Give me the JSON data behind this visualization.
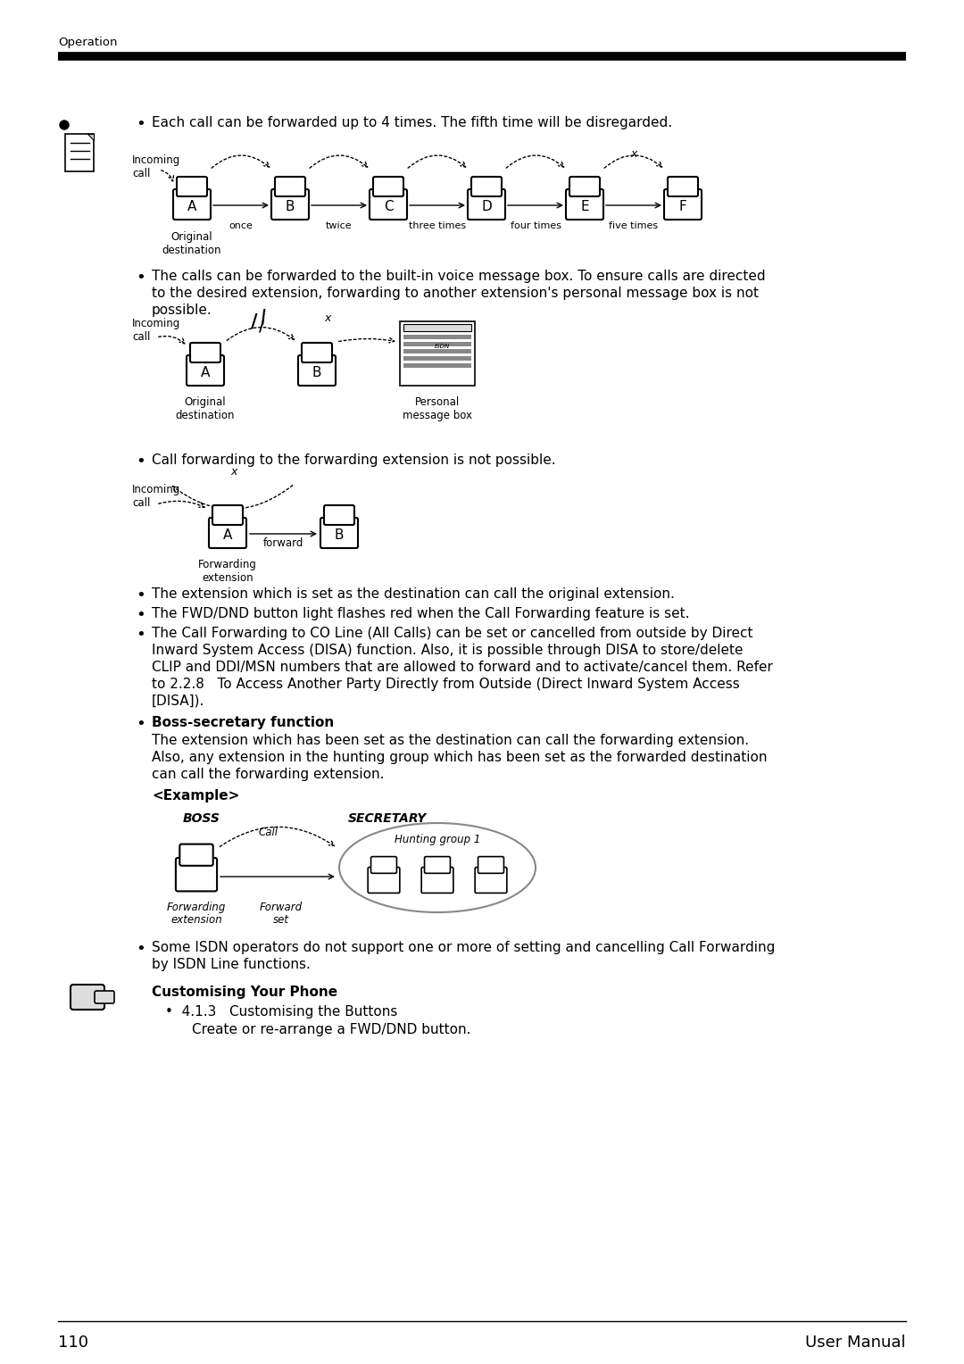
{
  "page_num": "110",
  "page_label": "User Manual",
  "header_label": "Operation",
  "bg_color": "#ffffff",
  "text_color": "#000000",
  "bullet1": "Each call can be forwarded up to 4 times. The fifth time will be disregarded.",
  "bullet2_line1": "The calls can be forwarded to the built-in voice message box. To ensure calls are directed",
  "bullet2_line2": "to the desired extension, forwarding to another extension's personal message box is not",
  "bullet2_line3": "possible.",
  "bullet3": "Call forwarding to the forwarding extension is not possible.",
  "bullet4_line1": "The extension which is set as the destination can call the original extension.",
  "bullet5_line1": "The FWD/DND button light flashes red when the Call Forwarding feature is set.",
  "bullet6_line1": "The Call Forwarding to CO Line (All Calls) can be set or cancelled from outside by Direct",
  "bullet6_line2": "Inward System Access (DISA) function. Also, it is possible through DISA to store/delete",
  "bullet6_line3": "CLIP and DDI/MSN numbers that are allowed to forward and to activate/cancel them. Refer",
  "bullet6_line4": "to 2.2.8   To Access Another Party Directly from Outside (Direct Inward System Access",
  "bullet6_line5": "[DISA]).",
  "bullet7_bold": "Boss-secretary function",
  "bullet7_line1": "The extension which has been set as the destination can call the forwarding extension.",
  "bullet7_line2": "Also, any extension in the hunting group which has been set as the forwarded destination",
  "bullet7_line3": "can call the forwarding extension.",
  "example_label": "<Example>",
  "boss_label": "BOSS",
  "secretary_label": "SECRETARY",
  "call_label": "Call",
  "hunting_label": "Hunting group 1",
  "fwd_ext_label1": "Forwarding",
  "fwd_ext_label2": "extension",
  "fwd_set_label1": "Forward",
  "fwd_set_label2": "set",
  "customising_bold": "Customising Your Phone",
  "customising_sub": "4.1.3   Customising the Buttons",
  "customising_sub2": "Create or re-arrange a FWD/DND button.",
  "some_isdn": "Some ISDN operators do not support one or more of setting and cancelling Call Forwarding",
  "some_isdn2": "by ISDN Line functions."
}
